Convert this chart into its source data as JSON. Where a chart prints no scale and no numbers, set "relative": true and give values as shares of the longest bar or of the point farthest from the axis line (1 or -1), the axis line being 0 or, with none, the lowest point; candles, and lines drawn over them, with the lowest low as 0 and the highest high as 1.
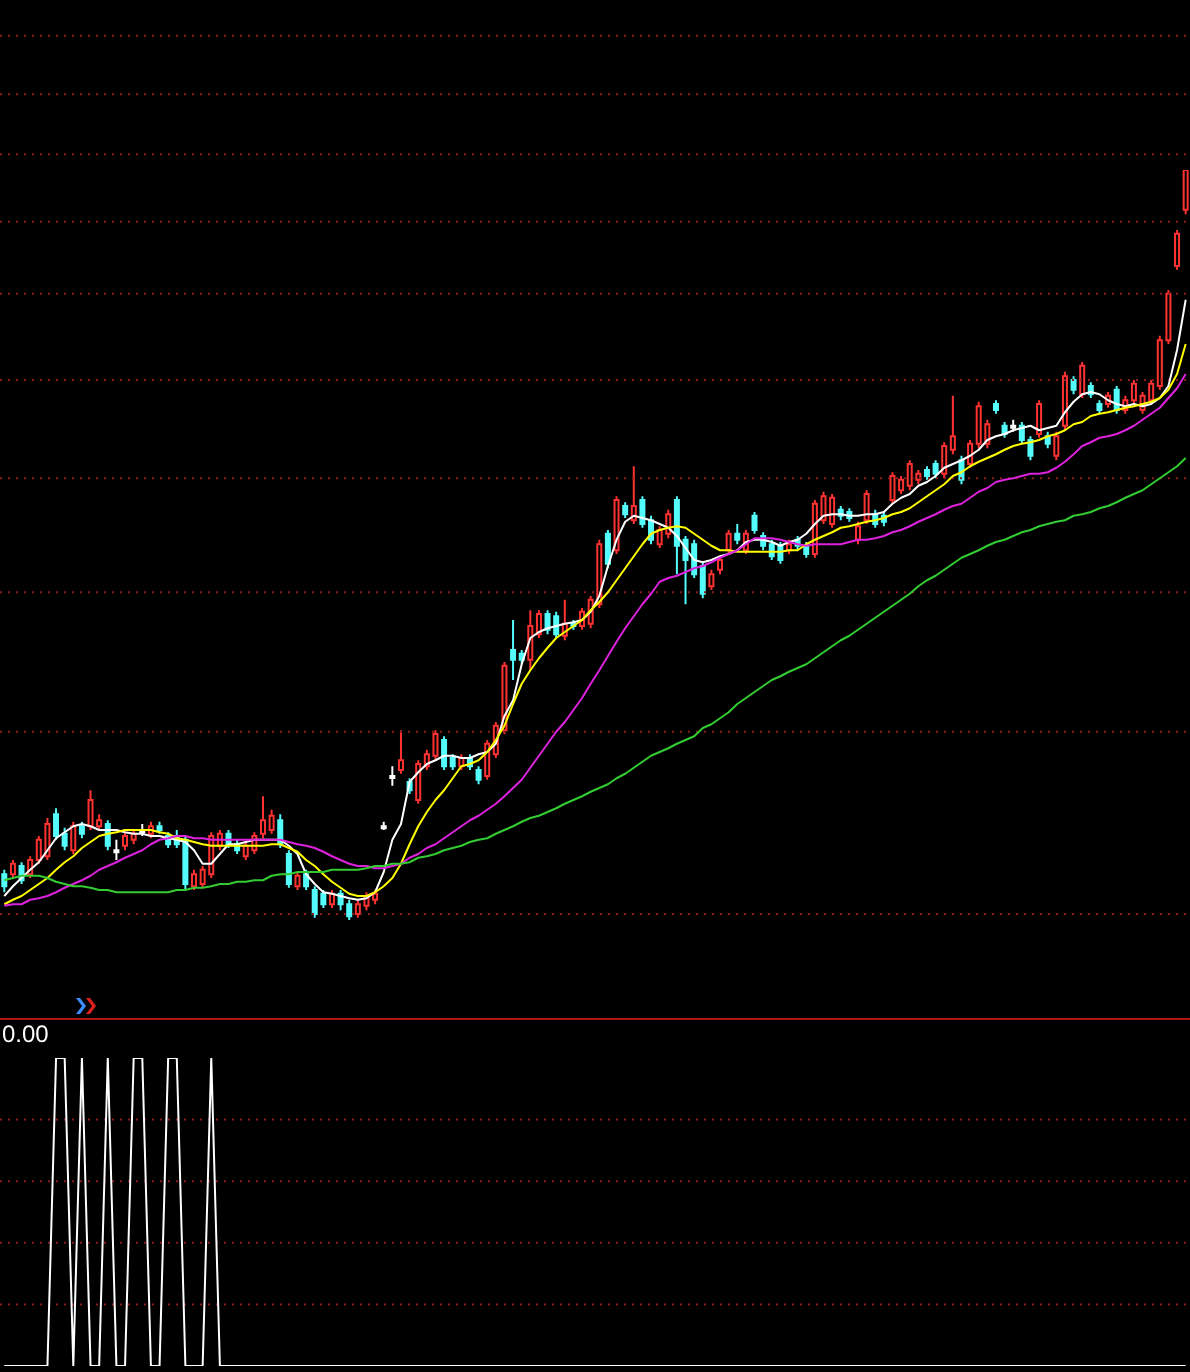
{
  "chart_data": [
    {
      "type": "candlestick",
      "relative": true,
      "tick_labels": false,
      "categories": [
        null,
        null,
        null,
        null,
        null,
        null,
        null,
        null,
        null,
        null,
        null,
        null,
        null,
        null,
        null,
        null,
        null,
        null,
        null,
        null,
        null,
        null,
        null,
        null,
        null,
        null,
        null,
        null,
        null,
        null,
        null,
        null,
        null,
        null,
        null,
        null,
        null,
        null,
        null,
        null,
        null,
        null,
        null,
        null,
        null,
        null,
        null,
        null,
        null,
        null,
        null,
        null,
        null,
        null,
        null,
        null,
        null,
        null,
        null,
        null,
        null,
        null,
        null,
        null,
        null,
        null,
        null,
        null,
        null,
        null,
        null,
        null,
        null,
        null,
        null,
        null,
        null,
        null,
        null,
        null,
        null,
        null,
        null,
        null,
        null,
        null,
        null,
        null,
        null,
        null,
        null,
        null,
        null,
        null,
        null,
        null,
        null,
        null,
        null,
        null,
        null,
        null,
        null,
        null,
        null,
        null,
        null,
        null,
        null,
        null,
        null,
        null,
        null,
        null,
        null,
        null,
        null,
        null,
        null,
        null,
        null,
        null,
        null,
        null,
        null,
        null,
        null,
        null,
        null,
        null,
        null,
        null,
        null,
        null,
        null,
        null,
        null,
        null
      ],
      "ohlc": [
        [
          0.061,
          0.067,
          0.037,
          0.045
        ],
        [
          0.061,
          0.08,
          0.056,
          0.075
        ],
        [
          0.072,
          0.077,
          0.048,
          0.053
        ],
        [
          0.061,
          0.085,
          0.056,
          0.08
        ],
        [
          0.08,
          0.112,
          0.075,
          0.107
        ],
        [
          0.085,
          0.136,
          0.08,
          0.128
        ],
        [
          0.141,
          0.149,
          0.107,
          0.112
        ],
        [
          0.115,
          0.123,
          0.093,
          0.099
        ],
        [
          0.093,
          0.131,
          0.088,
          0.125
        ],
        [
          0.125,
          0.131,
          0.109,
          0.115
        ],
        [
          0.125,
          0.173,
          0.12,
          0.16
        ],
        [
          0.125,
          0.141,
          0.12,
          0.133
        ],
        [
          0.128,
          0.133,
          0.093,
          0.099
        ],
        [
          0.093,
          0.107,
          0.08,
          0.093
        ],
        [
          0.099,
          0.117,
          0.093,
          0.112
        ],
        [
          0.107,
          0.12,
          0.101,
          0.115
        ],
        [
          0.12,
          0.128,
          0.112,
          0.12
        ],
        [
          0.115,
          0.131,
          0.109,
          0.125
        ],
        [
          0.125,
          0.131,
          0.115,
          0.12
        ],
        [
          0.112,
          0.117,
          0.096,
          0.101
        ],
        [
          0.112,
          0.12,
          0.096,
          0.101
        ],
        [
          0.107,
          0.112,
          0.04,
          0.048
        ],
        [
          0.045,
          0.067,
          0.04,
          0.061
        ],
        [
          0.048,
          0.072,
          0.043,
          0.067
        ],
        [
          0.061,
          0.117,
          0.056,
          0.112
        ],
        [
          0.099,
          0.12,
          0.093,
          0.115
        ],
        [
          0.115,
          0.12,
          0.096,
          0.101
        ],
        [
          0.101,
          0.107,
          0.088,
          0.093
        ],
        [
          0.085,
          0.104,
          0.08,
          0.099
        ],
        [
          0.093,
          0.117,
          0.088,
          0.112
        ],
        [
          0.115,
          0.165,
          0.109,
          0.133
        ],
        [
          0.12,
          0.147,
          0.115,
          0.139
        ],
        [
          0.133,
          0.141,
          0.096,
          0.101
        ],
        [
          0.088,
          0.093,
          0.043,
          0.048
        ],
        [
          0.045,
          0.064,
          0.04,
          0.059
        ],
        [
          0.061,
          0.067,
          0.04,
          0.045
        ],
        [
          0.04,
          0.045,
          0.003,
          0.008
        ],
        [
          0.035,
          0.04,
          0.016,
          0.021
        ],
        [
          0.021,
          0.04,
          0.016,
          0.035
        ],
        [
          0.035,
          0.04,
          0.013,
          0.021
        ],
        [
          0.021,
          0.027,
          0,
          0.005
        ],
        [
          0.008,
          0.027,
          0.003,
          0.021
        ],
        [
          0.019,
          0.037,
          0.013,
          0.032
        ],
        [
          0.027,
          0.04,
          0.021,
          0.035
        ],
        [
          0.125,
          0.131,
          0.12,
          0.125
        ],
        [
          0.192,
          0.205,
          0.179,
          0.192
        ],
        [
          0.2,
          0.253,
          0.195,
          0.213
        ],
        [
          0.184,
          0.189,
          0.168,
          0.173
        ],
        [
          0.16,
          0.213,
          0.155,
          0.208
        ],
        [
          0.205,
          0.227,
          0.2,
          0.221
        ],
        [
          0.219,
          0.253,
          0.213,
          0.248
        ],
        [
          0.24,
          0.245,
          0.2,
          0.205
        ],
        [
          0.216,
          0.221,
          0.2,
          0.205
        ],
        [
          0.205,
          0.221,
          0.2,
          0.216
        ],
        [
          0.216,
          0.221,
          0.2,
          0.205
        ],
        [
          0.2,
          0.205,
          0.181,
          0.187
        ],
        [
          0.192,
          0.24,
          0.187,
          0.235
        ],
        [
          0.221,
          0.264,
          0.216,
          0.259
        ],
        [
          0.253,
          0.344,
          0.248,
          0.339
        ],
        [
          0.36,
          0.4,
          0.32,
          0.347
        ],
        [
          0.355,
          0.36,
          0.341,
          0.347
        ],
        [
          0.347,
          0.413,
          0.333,
          0.392
        ],
        [
          0.381,
          0.413,
          0.376,
          0.408
        ],
        [
          0.408,
          0.413,
          0.381,
          0.387
        ],
        [
          0.405,
          0.411,
          0.376,
          0.381
        ],
        [
          0.379,
          0.427,
          0.373,
          0.395
        ],
        [
          0.395,
          0.4,
          0.387,
          0.392
        ],
        [
          0.392,
          0.416,
          0.387,
          0.411
        ],
        [
          0.395,
          0.432,
          0.389,
          0.427
        ],
        [
          0.421,
          0.507,
          0.416,
          0.501
        ],
        [
          0.515,
          0.52,
          0.469,
          0.475
        ],
        [
          0.493,
          0.565,
          0.488,
          0.56
        ],
        [
          0.552,
          0.557,
          0.536,
          0.541
        ],
        [
          0.533,
          0.605,
          0.528,
          0.552
        ],
        [
          0.56,
          0.565,
          0.523,
          0.528
        ],
        [
          0.533,
          0.539,
          0.501,
          0.507
        ],
        [
          0.501,
          0.525,
          0.496,
          0.52
        ],
        [
          0.515,
          0.547,
          0.509,
          0.541
        ],
        [
          0.56,
          0.565,
          0.461,
          0.499
        ],
        [
          0.507,
          0.512,
          0.421,
          0.48
        ],
        [
          0.501,
          0.507,
          0.456,
          0.461
        ],
        [
          0.472,
          0.477,
          0.429,
          0.435
        ],
        [
          0.445,
          0.467,
          0.44,
          0.461
        ],
        [
          0.467,
          0.485,
          0.461,
          0.48
        ],
        [
          0.493,
          0.52,
          0.488,
          0.515
        ],
        [
          0.515,
          0.528,
          0.501,
          0.507
        ],
        [
          0.493,
          0.52,
          0.488,
          0.515
        ],
        [
          0.539,
          0.544,
          0.515,
          0.52
        ],
        [
          0.512,
          0.517,
          0.493,
          0.499
        ],
        [
          0.501,
          0.507,
          0.48,
          0.485
        ],
        [
          0.499,
          0.504,
          0.475,
          0.48
        ],
        [
          0.493,
          0.507,
          0.488,
          0.501
        ],
        [
          0.507,
          0.512,
          0.493,
          0.499
        ],
        [
          0.499,
          0.504,
          0.483,
          0.488
        ],
        [
          0.488,
          0.56,
          0.483,
          0.555
        ],
        [
          0.533,
          0.571,
          0.528,
          0.565
        ],
        [
          0.528,
          0.568,
          0.523,
          0.563
        ],
        [
          0.547,
          0.552,
          0.533,
          0.539
        ],
        [
          0.544,
          0.549,
          0.531,
          0.536
        ],
        [
          0.507,
          0.531,
          0.501,
          0.525
        ],
        [
          0.533,
          0.573,
          0.528,
          0.568
        ],
        [
          0.541,
          0.547,
          0.523,
          0.528
        ],
        [
          0.539,
          0.544,
          0.525,
          0.531
        ],
        [
          0.56,
          0.597,
          0.555,
          0.592
        ],
        [
          0.573,
          0.592,
          0.568,
          0.587
        ],
        [
          0.579,
          0.613,
          0.573,
          0.608
        ],
        [
          0.587,
          0.6,
          0.581,
          0.595
        ],
        [
          0.6,
          0.605,
          0.587,
          0.592
        ],
        [
          0.608,
          0.613,
          0.589,
          0.595
        ],
        [
          0.595,
          0.637,
          0.589,
          0.632
        ],
        [
          0.627,
          0.699,
          0.621,
          0.645
        ],
        [
          0.613,
          0.619,
          0.581,
          0.587
        ],
        [
          0.608,
          0.64,
          0.603,
          0.635
        ],
        [
          0.635,
          0.691,
          0.629,
          0.685
        ],
        [
          0.635,
          0.667,
          0.629,
          0.661
        ],
        [
          0.688,
          0.693,
          0.675,
          0.68
        ],
        [
          0.659,
          0.664,
          0.643,
          0.648
        ],
        [
          0.659,
          0.667,
          0.651,
          0.659
        ],
        [
          0.659,
          0.664,
          0.635,
          0.64
        ],
        [
          0.64,
          0.645,
          0.613,
          0.619
        ],
        [
          0.648,
          0.693,
          0.643,
          0.688
        ],
        [
          0.645,
          0.651,
          0.629,
          0.635
        ],
        [
          0.619,
          0.651,
          0.613,
          0.645
        ],
        [
          0.659,
          0.731,
          0.653,
          0.725
        ],
        [
          0.72,
          0.725,
          0.701,
          0.707
        ],
        [
          0.701,
          0.744,
          0.696,
          0.739
        ],
        [
          0.712,
          0.717,
          0.696,
          0.701
        ],
        [
          0.688,
          0.693,
          0.675,
          0.68
        ],
        [
          0.688,
          0.704,
          0.683,
          0.699
        ],
        [
          0.707,
          0.712,
          0.675,
          0.68
        ],
        [
          0.68,
          0.699,
          0.675,
          0.693
        ],
        [
          0.693,
          0.72,
          0.688,
          0.715
        ],
        [
          0.68,
          0.704,
          0.675,
          0.699
        ],
        [
          0.693,
          0.72,
          0.688,
          0.715
        ],
        [
          0.712,
          0.779,
          0.707,
          0.773
        ],
        [
          0.773,
          0.84,
          0.768,
          0.835
        ],
        [
          0.872,
          0.92,
          0.867,
          0.915
        ],
        [
          0.947,
          1,
          0.941,
          1
        ]
      ],
      "colors": [
        "#54fcfc",
        "#ff3232",
        "#54fcfc",
        "#ff3232",
        "#ff3232",
        "#ff3232",
        "#54fcfc",
        "#54fcfc",
        "#ff3232",
        "#54fcfc",
        "#ff3232",
        "#ff3232",
        "#54fcfc",
        "#ffffff",
        "#ff3232",
        "#ff3232",
        "#ffffff",
        "#ff3232",
        "#54fcfc",
        "#54fcfc",
        "#54fcfc",
        "#54fcfc",
        "#ff3232",
        "#ff3232",
        "#ff3232",
        "#ff3232",
        "#54fcfc",
        "#54fcfc",
        "#ff3232",
        "#ff3232",
        "#ff3232",
        "#ff3232",
        "#54fcfc",
        "#54fcfc",
        "#ff3232",
        "#54fcfc",
        "#54fcfc",
        "#54fcfc",
        "#ff3232",
        "#54fcfc",
        "#54fcfc",
        "#ff3232",
        "#ff3232",
        "#ff3232",
        "#ffffff",
        "#ffffff",
        "#ff3232",
        "#54fcfc",
        "#ff3232",
        "#ff3232",
        "#ff3232",
        "#54fcfc",
        "#54fcfc",
        "#ff3232",
        "#54fcfc",
        "#54fcfc",
        "#ff3232",
        "#ff3232",
        "#ff3232",
        "#54fcfc",
        "#54fcfc",
        "#ff3232",
        "#ff3232",
        "#54fcfc",
        "#54fcfc",
        "#ff3232",
        "#54fcfc",
        "#ff3232",
        "#ff3232",
        "#ff3232",
        "#54fcfc",
        "#ff3232",
        "#54fcfc",
        "#ff3232",
        "#54fcfc",
        "#54fcfc",
        "#ff3232",
        "#ff3232",
        "#54fcfc",
        "#54fcfc",
        "#54fcfc",
        "#54fcfc",
        "#ff3232",
        "#ff3232",
        "#ff3232",
        "#54fcfc",
        "#ff3232",
        "#54fcfc",
        "#54fcfc",
        "#54fcfc",
        "#54fcfc",
        "#ff3232",
        "#54fcfc",
        "#54fcfc",
        "#ff3232",
        "#ff3232",
        "#ff3232",
        "#54fcfc",
        "#54fcfc",
        "#ff3232",
        "#ff3232",
        "#54fcfc",
        "#54fcfc",
        "#ff3232",
        "#ff3232",
        "#ff3232",
        "#ff3232",
        "#54fcfc",
        "#54fcfc",
        "#ff3232",
        "#ff3232",
        "#54fcfc",
        "#ff3232",
        "#ff3232",
        "#ff3232",
        "#54fcfc",
        "#54fcfc",
        "#ffffff",
        "#54fcfc",
        "#54fcfc",
        "#ff3232",
        "#54fcfc",
        "#ff3232",
        "#ff3232",
        "#54fcfc",
        "#ff3232",
        "#54fcfc",
        "#54fcfc",
        "#ff3232",
        "#54fcfc",
        "#ff3232",
        "#ff3232",
        "#ff3232",
        "#ff3232",
        "#ff3232",
        "#ff3232",
        "#ff3232",
        "#ff3232"
      ],
      "series": [
        {
          "type": "line",
          "color": "#ffffff",
          "values": [
            0.032,
            0.045,
            0.056,
            0.067,
            0.077,
            0.093,
            0.109,
            0.117,
            0.125,
            0.128,
            0.125,
            0.12,
            0.12,
            0.12,
            0.117,
            0.115,
            0.115,
            0.112,
            0.112,
            0.109,
            0.107,
            0.104,
            0.093,
            0.075,
            0.075,
            0.088,
            0.101,
            0.101,
            0.104,
            0.107,
            0.107,
            0.107,
            0.107,
            0.099,
            0.088,
            0.061,
            0.048,
            0.037,
            0.035,
            0.032,
            0.029,
            0.027,
            0.029,
            0.037,
            0.064,
            0.107,
            0.128,
            0.184,
            0.197,
            0.208,
            0.213,
            0.219,
            0.219,
            0.216,
            0.216,
            0.221,
            0.224,
            0.235,
            0.272,
            0.293,
            0.341,
            0.376,
            0.384,
            0.389,
            0.392,
            0.395,
            0.397,
            0.4,
            0.411,
            0.432,
            0.472,
            0.507,
            0.531,
            0.539,
            0.536,
            0.533,
            0.528,
            0.523,
            0.512,
            0.496,
            0.48,
            0.477,
            0.48,
            0.485,
            0.488,
            0.493,
            0.504,
            0.507,
            0.507,
            0.504,
            0.499,
            0.504,
            0.507,
            0.515,
            0.528,
            0.539,
            0.541,
            0.541,
            0.539,
            0.539,
            0.541,
            0.541,
            0.544,
            0.555,
            0.563,
            0.568,
            0.579,
            0.584,
            0.592,
            0.603,
            0.608,
            0.613,
            0.619,
            0.627,
            0.64,
            0.645,
            0.648,
            0.653,
            0.656,
            0.659,
            0.653,
            0.656,
            0.659,
            0.677,
            0.691,
            0.701,
            0.704,
            0.701,
            0.693,
            0.688,
            0.685,
            0.688,
            0.685,
            0.688,
            0.696,
            0.712,
            0.76,
            0.827
          ]
        },
        {
          "type": "line",
          "color": "#ffff00",
          "values": [
            0.021,
            0.027,
            0.032,
            0.04,
            0.048,
            0.056,
            0.067,
            0.077,
            0.085,
            0.096,
            0.104,
            0.112,
            0.115,
            0.117,
            0.12,
            0.12,
            0.12,
            0.12,
            0.117,
            0.115,
            0.109,
            0.107,
            0.104,
            0.101,
            0.099,
            0.099,
            0.099,
            0.099,
            0.099,
            0.099,
            0.099,
            0.101,
            0.101,
            0.096,
            0.091,
            0.08,
            0.072,
            0.061,
            0.051,
            0.043,
            0.035,
            0.032,
            0.032,
            0.037,
            0.045,
            0.056,
            0.075,
            0.101,
            0.125,
            0.144,
            0.16,
            0.173,
            0.189,
            0.205,
            0.208,
            0.213,
            0.224,
            0.24,
            0.259,
            0.288,
            0.315,
            0.333,
            0.349,
            0.363,
            0.376,
            0.384,
            0.392,
            0.4,
            0.413,
            0.424,
            0.437,
            0.453,
            0.469,
            0.485,
            0.501,
            0.515,
            0.52,
            0.523,
            0.525,
            0.523,
            0.515,
            0.507,
            0.499,
            0.493,
            0.493,
            0.491,
            0.491,
            0.491,
            0.491,
            0.491,
            0.491,
            0.493,
            0.493,
            0.501,
            0.507,
            0.512,
            0.517,
            0.523,
            0.525,
            0.528,
            0.531,
            0.533,
            0.536,
            0.541,
            0.544,
            0.549,
            0.557,
            0.565,
            0.573,
            0.581,
            0.592,
            0.597,
            0.605,
            0.611,
            0.616,
            0.621,
            0.627,
            0.632,
            0.635,
            0.637,
            0.64,
            0.645,
            0.648,
            0.653,
            0.661,
            0.664,
            0.672,
            0.675,
            0.677,
            0.68,
            0.683,
            0.685,
            0.688,
            0.691,
            0.696,
            0.707,
            0.728,
            0.768
          ]
        },
        {
          "type": "line",
          "color": "#dd22dd",
          "values": [
            0.019,
            0.021,
            0.021,
            0.027,
            0.029,
            0.032,
            0.037,
            0.043,
            0.048,
            0.053,
            0.059,
            0.067,
            0.072,
            0.077,
            0.083,
            0.088,
            0.093,
            0.101,
            0.107,
            0.109,
            0.112,
            0.112,
            0.109,
            0.109,
            0.107,
            0.107,
            0.107,
            0.107,
            0.107,
            0.107,
            0.107,
            0.107,
            0.107,
            0.104,
            0.101,
            0.099,
            0.096,
            0.091,
            0.085,
            0.08,
            0.075,
            0.072,
            0.072,
            0.069,
            0.069,
            0.072,
            0.075,
            0.083,
            0.088,
            0.096,
            0.101,
            0.109,
            0.117,
            0.125,
            0.133,
            0.139,
            0.147,
            0.155,
            0.165,
            0.176,
            0.187,
            0.203,
            0.219,
            0.235,
            0.251,
            0.264,
            0.28,
            0.296,
            0.315,
            0.333,
            0.352,
            0.371,
            0.389,
            0.405,
            0.421,
            0.435,
            0.451,
            0.456,
            0.459,
            0.464,
            0.469,
            0.472,
            0.477,
            0.483,
            0.488,
            0.493,
            0.501,
            0.509,
            0.509,
            0.509,
            0.507,
            0.504,
            0.501,
            0.499,
            0.501,
            0.501,
            0.501,
            0.501,
            0.504,
            0.507,
            0.507,
            0.509,
            0.512,
            0.517,
            0.52,
            0.525,
            0.531,
            0.536,
            0.541,
            0.547,
            0.552,
            0.555,
            0.563,
            0.571,
            0.576,
            0.584,
            0.587,
            0.589,
            0.592,
            0.595,
            0.595,
            0.597,
            0.603,
            0.611,
            0.621,
            0.632,
            0.637,
            0.643,
            0.645,
            0.648,
            0.653,
            0.659,
            0.667,
            0.675,
            0.683,
            0.696,
            0.709,
            0.728
          ]
        },
        {
          "type": "line",
          "color": "#33cc33",
          "values": [
            0.053,
            0.056,
            0.059,
            0.059,
            0.059,
            0.056,
            0.051,
            0.048,
            0.045,
            0.045,
            0.043,
            0.04,
            0.04,
            0.037,
            0.037,
            0.037,
            0.037,
            0.037,
            0.037,
            0.037,
            0.04,
            0.04,
            0.043,
            0.043,
            0.045,
            0.048,
            0.048,
            0.051,
            0.051,
            0.053,
            0.053,
            0.059,
            0.061,
            0.061,
            0.064,
            0.064,
            0.064,
            0.064,
            0.067,
            0.067,
            0.067,
            0.067,
            0.069,
            0.072,
            0.072,
            0.075,
            0.075,
            0.077,
            0.083,
            0.085,
            0.088,
            0.093,
            0.096,
            0.099,
            0.104,
            0.107,
            0.109,
            0.115,
            0.12,
            0.125,
            0.131,
            0.136,
            0.139,
            0.144,
            0.149,
            0.155,
            0.16,
            0.165,
            0.171,
            0.176,
            0.181,
            0.189,
            0.195,
            0.203,
            0.211,
            0.219,
            0.224,
            0.229,
            0.235,
            0.24,
            0.245,
            0.256,
            0.261,
            0.269,
            0.277,
            0.288,
            0.296,
            0.304,
            0.312,
            0.32,
            0.325,
            0.331,
            0.336,
            0.341,
            0.349,
            0.357,
            0.365,
            0.373,
            0.379,
            0.387,
            0.395,
            0.403,
            0.411,
            0.419,
            0.427,
            0.435,
            0.445,
            0.453,
            0.459,
            0.467,
            0.475,
            0.483,
            0.488,
            0.493,
            0.499,
            0.504,
            0.507,
            0.512,
            0.517,
            0.52,
            0.525,
            0.528,
            0.531,
            0.533,
            0.539,
            0.541,
            0.544,
            0.549,
            0.552,
            0.557,
            0.563,
            0.568,
            0.573,
            0.581,
            0.589,
            0.597,
            0.605,
            0.616
          ]
        }
      ],
      "ref_lines": [
        {
          "axis": "y",
          "value": 0.008,
          "color": "#8c1c1c",
          "line_style": "dotted"
        },
        {
          "axis": "y",
          "value": 0.251,
          "color": "#8c1c1c",
          "line_style": "dotted"
        },
        {
          "axis": "y",
          "value": 0.437,
          "color": "#8c1c1c",
          "line_style": "dotted"
        },
        {
          "axis": "y",
          "value": 0.589,
          "color": "#8c1c1c",
          "line_style": "dotted"
        },
        {
          "axis": "y",
          "value": 0.72,
          "color": "#8c1c1c",
          "line_style": "dotted"
        },
        {
          "axis": "y",
          "value": 0.835,
          "color": "#8c1c1c",
          "line_style": "dotted"
        },
        {
          "axis": "y",
          "value": 0.931,
          "color": "#8c1c1c",
          "line_style": "dotted"
        },
        {
          "axis": "y",
          "value": 1.021,
          "color": "#8c1c1c",
          "line_style": "dotted"
        },
        {
          "axis": "y",
          "value": 1.101,
          "color": "#8c1c1c",
          "line_style": "dotted"
        },
        {
          "axis": "y",
          "value": 1.179,
          "color": "#8c1c1c",
          "line_style": "dotted"
        }
      ]
    },
    {
      "type": "line",
      "relative": true,
      "tick_labels": false,
      "color": "#ffffff",
      "annotations": [
        "0.00"
      ],
      "categories": [
        null,
        null,
        null,
        null,
        null,
        null,
        null,
        null,
        null,
        null,
        null,
        null,
        null,
        null,
        null,
        null,
        null,
        null,
        null,
        null,
        null,
        null,
        null,
        null,
        null,
        null,
        null,
        null,
        null,
        null,
        null,
        null,
        null,
        null,
        null,
        null,
        null,
        null,
        null,
        null,
        null,
        null,
        null,
        null,
        null,
        null,
        null,
        null,
        null,
        null,
        null,
        null,
        null,
        null,
        null,
        null,
        null,
        null,
        null,
        null,
        null,
        null,
        null,
        null,
        null,
        null,
        null,
        null,
        null,
        null,
        null,
        null,
        null,
        null,
        null,
        null,
        null,
        null,
        null,
        null,
        null,
        null,
        null,
        null,
        null,
        null,
        null,
        null,
        null,
        null,
        null,
        null,
        null,
        null,
        null,
        null,
        null,
        null,
        null,
        null,
        null,
        null,
        null,
        null,
        null,
        null,
        null,
        null,
        null,
        null,
        null,
        null,
        null,
        null,
        null,
        null,
        null,
        null,
        null,
        null,
        null,
        null,
        null,
        null,
        null,
        null,
        null,
        null,
        null,
        null,
        null,
        null,
        null,
        null,
        null,
        null,
        null,
        null
      ],
      "values": [
        0,
        0,
        0,
        0,
        0,
        0,
        1,
        1,
        0,
        1,
        0,
        0,
        1,
        0,
        0,
        1,
        1,
        0,
        0,
        1,
        1,
        0,
        0,
        0,
        1,
        0,
        0,
        0,
        0,
        0,
        0,
        0,
        0,
        0,
        0,
        0,
        0,
        0,
        0,
        0,
        0,
        0,
        0,
        0,
        0,
        0,
        0,
        0,
        0,
        0,
        0,
        0,
        0,
        0,
        0,
        0,
        0,
        0,
        0,
        0,
        0,
        0,
        0,
        0,
        0,
        0,
        0,
        0,
        0,
        0,
        0,
        0,
        0,
        0,
        0,
        0,
        0,
        0,
        0,
        0,
        0,
        0,
        0,
        0,
        0,
        0,
        0,
        0,
        0,
        0,
        0,
        0,
        0,
        0,
        0,
        0,
        0,
        0,
        0,
        0,
        0,
        0,
        0,
        0,
        0,
        0,
        0,
        0,
        0,
        0,
        0,
        0,
        0,
        0,
        0,
        0,
        0,
        0,
        0,
        0,
        0,
        0,
        0,
        0,
        0,
        0,
        0,
        0,
        0,
        0,
        0,
        0,
        0,
        0,
        0,
        0,
        0,
        0
      ],
      "ref_lines": [
        {
          "axis": "y",
          "value": 0.2,
          "color": "#8c1c1c",
          "line_style": "dotted"
        },
        {
          "axis": "y",
          "value": 0.4,
          "color": "#8c1c1c",
          "line_style": "dotted"
        },
        {
          "axis": "y",
          "value": 0.6,
          "color": "#8c1c1c",
          "line_style": "dotted"
        },
        {
          "axis": "y",
          "value": 0.8,
          "color": "#8c1c1c",
          "line_style": "dotted"
        }
      ]
    }
  ]
}
